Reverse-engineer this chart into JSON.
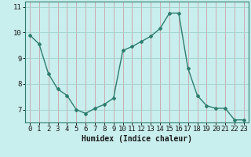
{
  "x": [
    0,
    1,
    2,
    3,
    4,
    5,
    6,
    7,
    8,
    9,
    10,
    11,
    12,
    13,
    14,
    15,
    16,
    17,
    18,
    19,
    20,
    21,
    22,
    23
  ],
  "y": [
    9.9,
    9.55,
    8.4,
    7.8,
    7.55,
    7.0,
    6.85,
    7.05,
    7.2,
    7.45,
    9.3,
    9.45,
    9.65,
    9.85,
    10.15,
    10.75,
    10.75,
    8.6,
    7.55,
    7.15,
    7.05,
    7.05,
    6.6,
    6.6
  ],
  "line_color": "#2e7d6e",
  "marker_color": "#2e7d6e",
  "bg_color": "#c8eeed",
  "grid_color_v": "#d0a0a8",
  "grid_color_h": "#a0d0cc",
  "xlabel": "Humidex (Indice chaleur)",
  "xlim": [
    -0.5,
    23.5
  ],
  "ylim": [
    6.5,
    11.2
  ],
  "yticks": [
    7,
    8,
    9,
    10,
    11
  ],
  "xticks": [
    0,
    1,
    2,
    3,
    4,
    5,
    6,
    7,
    8,
    9,
    10,
    11,
    12,
    13,
    14,
    15,
    16,
    17,
    18,
    19,
    20,
    21,
    22,
    23
  ],
  "label_fontsize": 7,
  "tick_fontsize": 6.5
}
